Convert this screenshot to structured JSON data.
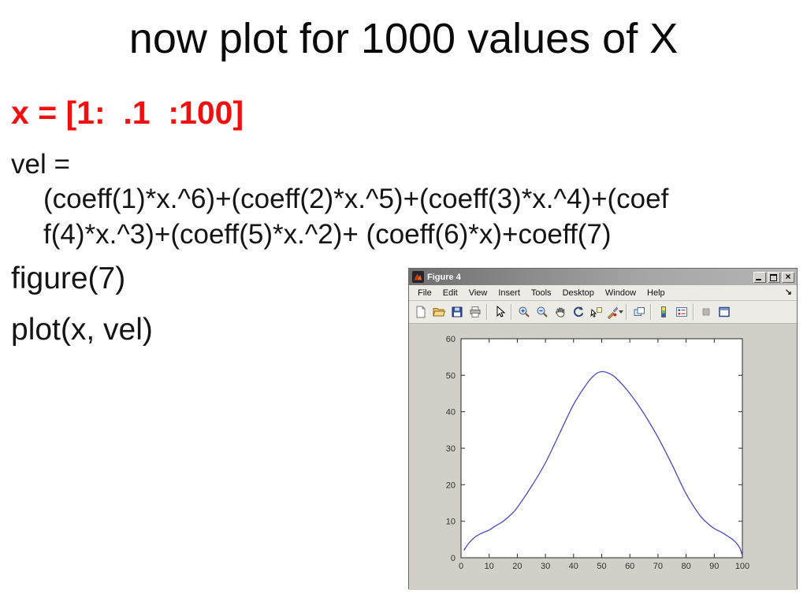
{
  "slide": {
    "title": "now plot for 1000 values of X",
    "code_color": "#f01010",
    "lines": {
      "x_assign": "x = [1:  .1  :100]",
      "vel": "vel =",
      "formula_line1": "(coeff(1)*x.^6)+(coeff(2)*x.^5)+(coeff(3)*x.^4)+(coef",
      "formula_line2": "f(4)*x.^3)+(coeff(5)*x.^2)+ (coeff(6)*x)+coeff(7)",
      "figure": "figure(7)",
      "plot": "plot(x, vel)"
    }
  },
  "figure_window": {
    "title": "Figure 4",
    "menu": [
      "File",
      "Edit",
      "View",
      "Insert",
      "Tools",
      "Desktop",
      "Window",
      "Help"
    ],
    "toolbar_icons": [
      "new-file",
      "open-folder",
      "save",
      "print",
      "pointer",
      "zoom-in",
      "zoom-out",
      "pan-hand",
      "rotate-3d",
      "data-cursor",
      "brush",
      "link-plots",
      "colorbar",
      "legend",
      "disabled-square",
      "dock-window"
    ],
    "window_controls": [
      "minimize",
      "maximize",
      "close"
    ]
  },
  "chart_data": {
    "type": "line",
    "title": "",
    "xlabel": "",
    "ylabel": "",
    "xlim": [
      0,
      100
    ],
    "ylim": [
      0,
      60
    ],
    "xticks": [
      0,
      10,
      20,
      30,
      40,
      50,
      60,
      70,
      80,
      90,
      100
    ],
    "yticks": [
      0,
      10,
      20,
      30,
      40,
      50,
      60
    ],
    "grid": false,
    "legend": "none",
    "axes_color": "#2a2a2a",
    "label_color": "#333333",
    "line_color": "#4a4ac8",
    "series": [
      {
        "name": "vel",
        "points": [
          [
            1,
            2
          ],
          [
            2,
            3.2
          ],
          [
            3,
            4.2
          ],
          [
            4,
            5
          ],
          [
            5,
            5.7
          ],
          [
            7,
            6.6
          ],
          [
            10,
            7.6
          ],
          [
            12,
            8.6
          ],
          [
            15,
            10
          ],
          [
            18,
            12
          ],
          [
            20,
            13.8
          ],
          [
            25,
            19.5
          ],
          [
            30,
            26
          ],
          [
            35,
            34
          ],
          [
            40,
            42
          ],
          [
            45,
            48
          ],
          [
            48,
            50.4
          ],
          [
            50,
            51
          ],
          [
            52,
            50.7
          ],
          [
            55,
            49.3
          ],
          [
            60,
            45
          ],
          [
            65,
            39.5
          ],
          [
            70,
            33
          ],
          [
            75,
            25.5
          ],
          [
            80,
            17.5
          ],
          [
            85,
            11.5
          ],
          [
            88,
            9.2
          ],
          [
            90,
            8
          ],
          [
            93,
            6.8
          ],
          [
            95,
            5.8
          ],
          [
            97,
            4.7
          ],
          [
            99,
            2.8
          ],
          [
            100,
            0.5
          ]
        ]
      }
    ]
  }
}
